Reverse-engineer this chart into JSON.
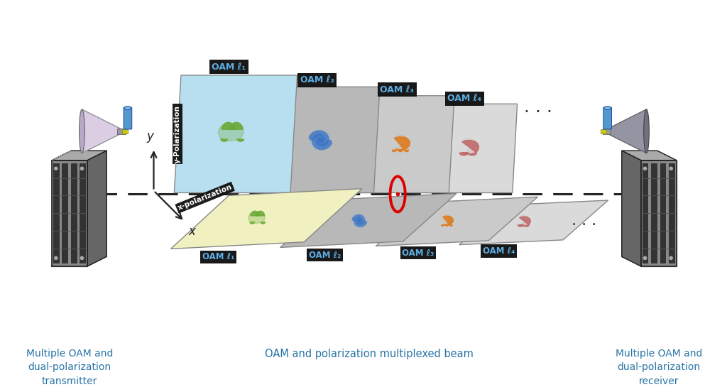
{
  "bg_color": "#ffffff",
  "label_color": "#2874a6",
  "oam_label_bg": "#111111",
  "oam_label_text": "#5dade2",
  "y_pol_label": "y-Polarization",
  "x_pol_label": "x-polarization",
  "oam_labels": [
    "OAM ℓ₁",
    "OAM ℓ₂",
    "OAM ℓ₃",
    "OAM ℓ₄"
  ],
  "bottom_text_left": "Multiple OAM and\ndual-polarization\ntransmitter",
  "bottom_text_center": "OAM and polarization multiplexed beam",
  "bottom_text_right": "Multiple OAM and\ndual-polarization\nreceiver",
  "panel_colors_top": [
    "#b8dff0",
    "#b8b8b8",
    "#cacaca",
    "#dadada"
  ],
  "panel_colors_bottom": [
    "#f0f0c0",
    "#b8b8b8",
    "#cacaca",
    "#dadada"
  ],
  "beam_colors": [
    "#6aaa38",
    "#3a72c4",
    "#e07818",
    "#c06060"
  ],
  "dashed_line_color": "#222222",
  "arrow_color": "#222222",
  "red_circle_color": "#dd0000",
  "axis_color": "#222222",
  "dots_color": "#333333"
}
